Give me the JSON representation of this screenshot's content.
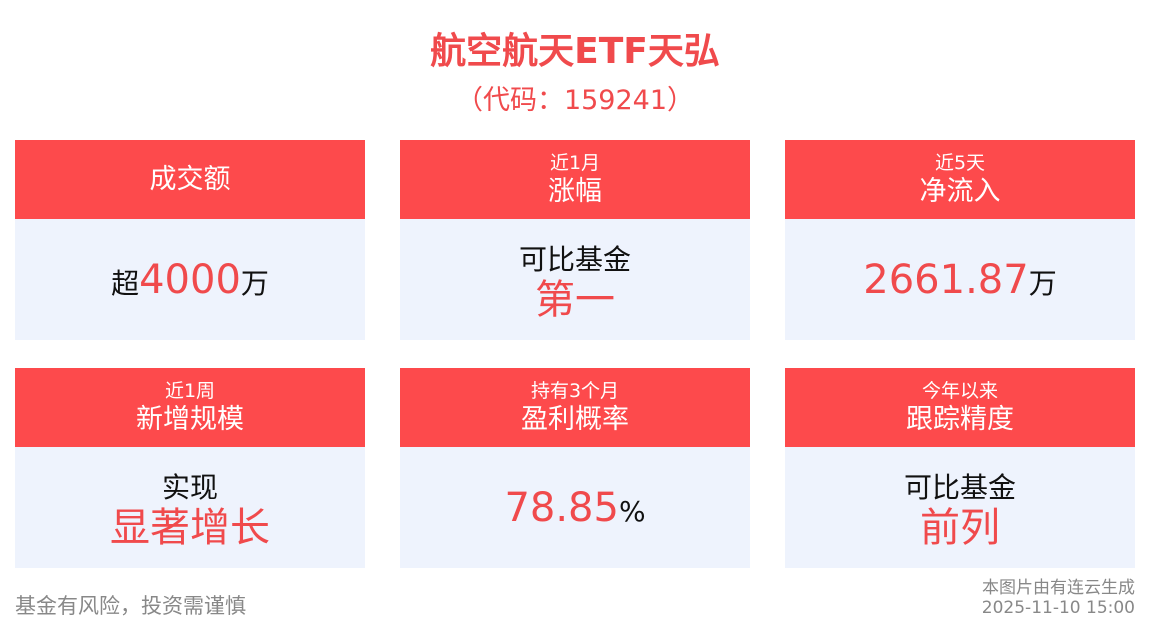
{
  "title": "航空航天ETF天弘",
  "code": "（代码：159241）",
  "colors": {
    "accent": "#fd4a4c",
    "card_bg": "#eef3fd",
    "highlight": "#f04a4c"
  },
  "cards": [
    {
      "sub": "",
      "label": "成交额",
      "pre": "超",
      "value": "4000",
      "unit": "万"
    },
    {
      "sub": "近1月",
      "label": "涨幅",
      "line1": "可比基金",
      "value": "第一"
    },
    {
      "sub": "近5天",
      "label": "净流入",
      "pre": "",
      "value": "2661.87",
      "unit": "万"
    },
    {
      "sub": "近1周",
      "label": "新增规模",
      "line1": "实现",
      "value": "显著增长"
    },
    {
      "sub": "持有3个月",
      "label": "盈利概率",
      "pre": "",
      "value": "78.85",
      "unit": "%"
    },
    {
      "sub": "今年以来",
      "label": "跟踪精度",
      "line1": "可比基金",
      "value": "前列"
    }
  ],
  "footer": {
    "disclaimer": "基金有风险，投资需谨慎",
    "source": "本图片由有连云生成",
    "datetime": "2025-11-10 15:00"
  }
}
